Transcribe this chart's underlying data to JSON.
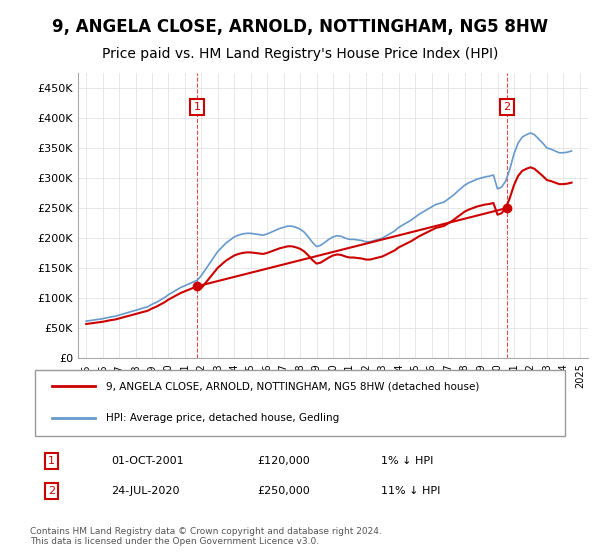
{
  "title": "9, ANGELA CLOSE, ARNOLD, NOTTINGHAM, NG5 8HW",
  "subtitle": "Price paid vs. HM Land Registry's House Price Index (HPI)",
  "title_fontsize": 12,
  "subtitle_fontsize": 10,
  "ylim": [
    0,
    475000
  ],
  "yticks": [
    0,
    50000,
    100000,
    150000,
    200000,
    250000,
    300000,
    350000,
    400000,
    450000
  ],
  "ytick_labels": [
    "£0",
    "£50K",
    "£100K",
    "£150K",
    "£200K",
    "£250K",
    "£300K",
    "£350K",
    "£400K",
    "£450K"
  ],
  "legend_line1": "9, ANGELA CLOSE, ARNOLD, NOTTINGHAM, NG5 8HW (detached house)",
  "legend_line2": "HPI: Average price, detached house, Gedling",
  "annotation1_label": "1",
  "annotation1_date": "01-OCT-2001",
  "annotation1_price": "£120,000",
  "annotation1_note": "1% ↓ HPI",
  "annotation2_label": "2",
  "annotation2_date": "24-JUL-2020",
  "annotation2_price": "£250,000",
  "annotation2_note": "11% ↓ HPI",
  "footer": "Contains HM Land Registry data © Crown copyright and database right 2024.\nThis data is licensed under the Open Government Licence v3.0.",
  "price_paid_color": "#cc0000",
  "hpi_color": "#6699cc",
  "vline_color": "#cc0000",
  "marker_color": "#cc0000",
  "background_color": "#ffffff",
  "grid_color": "#dddddd",
  "hpi_dates": [
    1995.0,
    1995.25,
    1995.5,
    1995.75,
    1996.0,
    1996.25,
    1996.5,
    1996.75,
    1997.0,
    1997.25,
    1997.5,
    1997.75,
    1998.0,
    1998.25,
    1998.5,
    1998.75,
    1999.0,
    1999.25,
    1999.5,
    1999.75,
    2000.0,
    2000.25,
    2000.5,
    2000.75,
    2001.0,
    2001.25,
    2001.5,
    2001.75,
    2002.0,
    2002.25,
    2002.5,
    2002.75,
    2003.0,
    2003.25,
    2003.5,
    2003.75,
    2004.0,
    2004.25,
    2004.5,
    2004.75,
    2005.0,
    2005.25,
    2005.5,
    2005.75,
    2006.0,
    2006.25,
    2006.5,
    2006.75,
    2007.0,
    2007.25,
    2007.5,
    2007.75,
    2008.0,
    2008.25,
    2008.5,
    2008.75,
    2009.0,
    2009.25,
    2009.5,
    2009.75,
    2010.0,
    2010.25,
    2010.5,
    2010.75,
    2011.0,
    2011.25,
    2011.5,
    2011.75,
    2012.0,
    2012.25,
    2012.5,
    2012.75,
    2013.0,
    2013.25,
    2013.5,
    2013.75,
    2014.0,
    2014.25,
    2014.5,
    2014.75,
    2015.0,
    2015.25,
    2015.5,
    2015.75,
    2016.0,
    2016.25,
    2016.5,
    2016.75,
    2017.0,
    2017.25,
    2017.5,
    2017.75,
    2018.0,
    2018.25,
    2018.5,
    2018.75,
    2019.0,
    2019.25,
    2019.5,
    2019.75,
    2020.0,
    2020.25,
    2020.5,
    2020.75,
    2021.0,
    2021.25,
    2021.5,
    2021.75,
    2022.0,
    2022.25,
    2022.5,
    2022.75,
    2023.0,
    2023.25,
    2023.5,
    2023.75,
    2024.0,
    2024.25,
    2024.5
  ],
  "hpi_values": [
    62000,
    63000,
    64000,
    65000,
    66000,
    67500,
    69000,
    70000,
    72000,
    74000,
    76000,
    78000,
    80000,
    82000,
    84000,
    86000,
    90000,
    93000,
    97000,
    101000,
    106000,
    110000,
    114000,
    118000,
    121000,
    124000,
    127000,
    130000,
    138000,
    148000,
    158000,
    168000,
    178000,
    185000,
    192000,
    197000,
    202000,
    205000,
    207000,
    208000,
    208000,
    207000,
    206000,
    205000,
    207000,
    210000,
    213000,
    216000,
    218000,
    220000,
    220000,
    218000,
    215000,
    210000,
    202000,
    193000,
    186000,
    188000,
    193000,
    198000,
    202000,
    204000,
    203000,
    200000,
    198000,
    198000,
    197000,
    196000,
    194000,
    194000,
    196000,
    198000,
    200000,
    204000,
    208000,
    212000,
    218000,
    222000,
    226000,
    230000,
    235000,
    240000,
    244000,
    248000,
    252000,
    256000,
    258000,
    260000,
    265000,
    270000,
    276000,
    282000,
    288000,
    292000,
    295000,
    298000,
    300000,
    302000,
    303000,
    305000,
    282000,
    285000,
    295000,
    315000,
    340000,
    358000,
    368000,
    372000,
    375000,
    372000,
    365000,
    358000,
    350000,
    348000,
    345000,
    342000,
    342000,
    343000,
    345000
  ],
  "price_paid_dates": [
    2001.75,
    2020.56
  ],
  "price_paid_values": [
    120000,
    250000
  ],
  "vline1_x": 2001.75,
  "vline2_x": 2020.56,
  "xlim": [
    1994.5,
    2025.5
  ],
  "xticks": [
    1995,
    1996,
    1997,
    1998,
    1999,
    2000,
    2001,
    2002,
    2003,
    2004,
    2005,
    2006,
    2007,
    2008,
    2009,
    2010,
    2011,
    2012,
    2013,
    2014,
    2015,
    2016,
    2017,
    2018,
    2019,
    2020,
    2021,
    2022,
    2023,
    2024,
    2025
  ]
}
